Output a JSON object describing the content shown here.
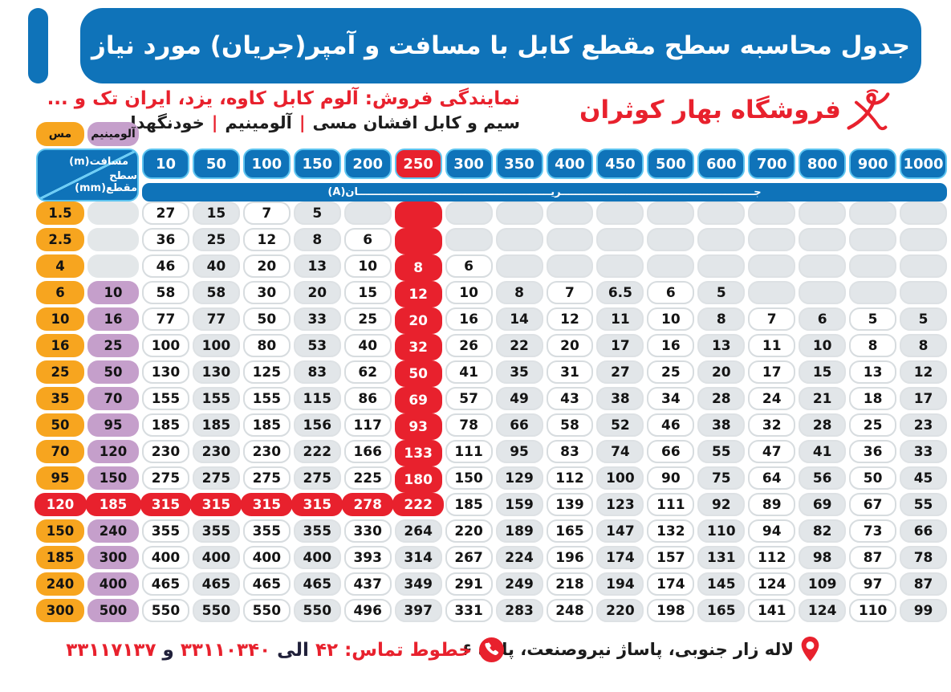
{
  "header": {
    "title": "جدول محاسبه سطح مقطع کابل با مسافت و آمپر(جریان) مورد نیاز"
  },
  "subheader": {
    "brand": "فروشگاه بهار کوثران",
    "dealer_line": "نمایندگی فروش: آلوم کابل کاوه، یزد، ایران تک و ...",
    "products": {
      "p1": "سیم و کابل افشان مسی",
      "sep": "|",
      "p2": "آلومینیم",
      "p3": "خودنگهدار"
    }
  },
  "table": {
    "legend": {
      "copper": "مس",
      "aluminum": "آلومینیم"
    },
    "corner": {
      "top": "مسافت(m)",
      "bottom": "سطح مقطع(mm)"
    },
    "current_label": "جــــــــــــــــــــــــــــــــــــــــــــــــــــــریــــــــــــــــــــــــــــــــــــــــــــــــــــــان(A)",
    "columns": [
      "10",
      "50",
      "100",
      "150",
      "200",
      "250",
      "300",
      "350",
      "400",
      "450",
      "500",
      "600",
      "700",
      "800",
      "900",
      "1000"
    ],
    "highlight_column": "250",
    "rows": [
      {
        "cu": "1.5",
        "al": "",
        "hot": true,
        "highlight": false,
        "values": [
          "27",
          "15",
          "7",
          "5",
          "",
          "",
          "",
          "",
          "",
          "",
          "",
          "",
          "",
          "",
          "",
          ""
        ]
      },
      {
        "cu": "2.5",
        "al": "",
        "hot": true,
        "highlight": false,
        "values": [
          "36",
          "25",
          "12",
          "8",
          "6",
          "",
          "",
          "",
          "",
          "",
          "",
          "",
          "",
          "",
          "",
          ""
        ]
      },
      {
        "cu": "4",
        "al": "",
        "hot": true,
        "highlight": false,
        "values": [
          "46",
          "40",
          "20",
          "13",
          "10",
          "8",
          "6",
          "",
          "",
          "",
          "",
          "",
          "",
          "",
          "",
          ""
        ]
      },
      {
        "cu": "6",
        "al": "10",
        "hot": true,
        "highlight": false,
        "values": [
          "58",
          "58",
          "30",
          "20",
          "15",
          "12",
          "10",
          "8",
          "7",
          "6.5",
          "6",
          "5",
          "",
          "",
          "",
          ""
        ]
      },
      {
        "cu": "10",
        "al": "16",
        "hot": true,
        "highlight": false,
        "values": [
          "77",
          "77",
          "50",
          "33",
          "25",
          "20",
          "16",
          "14",
          "12",
          "11",
          "10",
          "8",
          "7",
          "6",
          "5",
          "5"
        ]
      },
      {
        "cu": "16",
        "al": "25",
        "hot": true,
        "highlight": false,
        "values": [
          "100",
          "100",
          "80",
          "53",
          "40",
          "32",
          "26",
          "22",
          "20",
          "17",
          "16",
          "13",
          "11",
          "10",
          "8",
          "8"
        ]
      },
      {
        "cu": "25",
        "al": "50",
        "hot": true,
        "highlight": false,
        "values": [
          "130",
          "130",
          "125",
          "83",
          "62",
          "50",
          "41",
          "35",
          "31",
          "27",
          "25",
          "20",
          "17",
          "15",
          "13",
          "12"
        ]
      },
      {
        "cu": "35",
        "al": "70",
        "hot": true,
        "highlight": false,
        "values": [
          "155",
          "155",
          "155",
          "115",
          "86",
          "69",
          "57",
          "49",
          "43",
          "38",
          "34",
          "28",
          "24",
          "21",
          "18",
          "17"
        ]
      },
      {
        "cu": "50",
        "al": "95",
        "hot": true,
        "highlight": false,
        "values": [
          "185",
          "185",
          "185",
          "156",
          "117",
          "93",
          "78",
          "66",
          "58",
          "52",
          "46",
          "38",
          "32",
          "28",
          "25",
          "23"
        ]
      },
      {
        "cu": "70",
        "al": "120",
        "hot": true,
        "highlight": false,
        "values": [
          "230",
          "230",
          "230",
          "222",
          "166",
          "133",
          "111",
          "95",
          "83",
          "74",
          "66",
          "55",
          "47",
          "41",
          "36",
          "33"
        ]
      },
      {
        "cu": "95",
        "al": "150",
        "hot": true,
        "highlight": false,
        "values": [
          "275",
          "275",
          "275",
          "275",
          "225",
          "180",
          "150",
          "129",
          "112",
          "100",
          "90",
          "75",
          "64",
          "56",
          "50",
          "45"
        ]
      },
      {
        "cu": "120",
        "al": "185",
        "hot": true,
        "highlight": true,
        "values": [
          "315",
          "315",
          "315",
          "315",
          "278",
          "222",
          "185",
          "159",
          "139",
          "123",
          "111",
          "92",
          "89",
          "69",
          "67",
          "55"
        ]
      },
      {
        "cu": "150",
        "al": "240",
        "hot": false,
        "highlight": false,
        "values": [
          "355",
          "355",
          "355",
          "355",
          "330",
          "264",
          "220",
          "189",
          "165",
          "147",
          "132",
          "110",
          "94",
          "82",
          "73",
          "66"
        ]
      },
      {
        "cu": "185",
        "al": "300",
        "hot": false,
        "highlight": false,
        "values": [
          "400",
          "400",
          "400",
          "400",
          "393",
          "314",
          "267",
          "224",
          "196",
          "174",
          "157",
          "131",
          "112",
          "98",
          "87",
          "78"
        ]
      },
      {
        "cu": "240",
        "al": "400",
        "hot": false,
        "highlight": false,
        "values": [
          "465",
          "465",
          "465",
          "465",
          "437",
          "349",
          "291",
          "249",
          "218",
          "194",
          "174",
          "145",
          "124",
          "109",
          "97",
          "87"
        ]
      },
      {
        "cu": "300",
        "al": "500",
        "hot": false,
        "highlight": false,
        "values": [
          "550",
          "550",
          "550",
          "550",
          "496",
          "397",
          "331",
          "283",
          "248",
          "220",
          "198",
          "165",
          "141",
          "124",
          "110",
          "99"
        ]
      }
    ]
  },
  "footer": {
    "address": "لاله زار جنوبی، پاساژ نیروصنعت، پلاک ۶",
    "phone": {
      "label": "خطوط تماس:",
      "n1": "۴۲",
      "to": "الی",
      "n2": "۳۳۱۱۰۳۴۰",
      "and": "و",
      "n3": "۳۳۱۱۷۱۳۷"
    }
  },
  "colors": {
    "blue": "#0f73b9",
    "light_blue": "#5fc5f0",
    "red": "#e8212d",
    "orange": "#f7a51f",
    "purple": "#c59fcb",
    "gray_cell": "#e2e6e9"
  }
}
